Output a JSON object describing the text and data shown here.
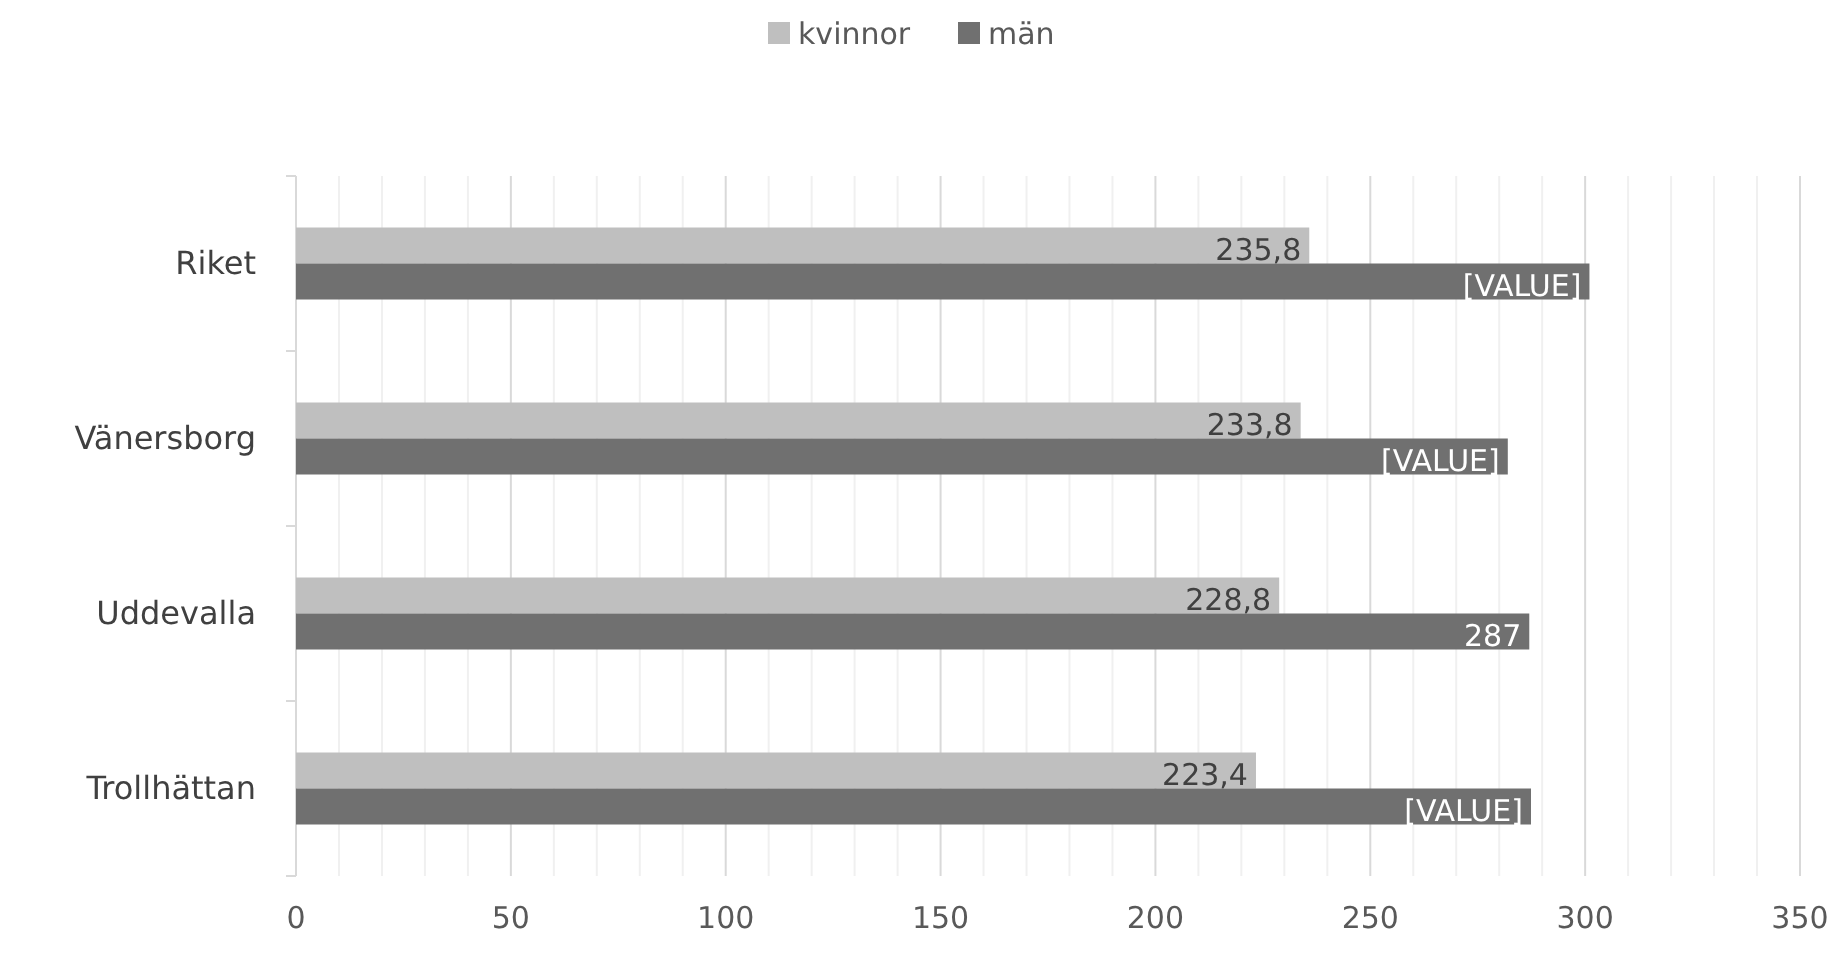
{
  "chart_data": {
    "type": "bar",
    "orientation": "horizontal",
    "categories": [
      "Riket",
      "Vänersborg",
      "Uddevalla",
      "Trollhättan"
    ],
    "series": [
      {
        "name": "kvinnor",
        "color": "#bfbfbf",
        "values": [
          235.8,
          233.8,
          228.8,
          223.4
        ],
        "value_labels": [
          "235,8",
          "233,8",
          "228,8",
          "223,4"
        ]
      },
      {
        "name": "män",
        "color": "#707070",
        "values": [
          301,
          282,
          287,
          287.4
        ],
        "value_labels": [
          "[VALUE]",
          "[VALUE]",
          "287",
          "[VALUE]"
        ]
      }
    ],
    "xlim": [
      0,
      350
    ],
    "xticks": [
      0,
      {
        "value": 10,
        "label": null
      },
      {
        "value": 20,
        "label": null
      },
      {
        "value": 30,
        "label": null
      },
      {
        "value": 40,
        "label": null
      },
      50,
      {
        "value": 60,
        "label": null
      },
      {
        "value": 70,
        "label": null
      },
      {
        "value": 80,
        "label": null
      },
      {
        "value": 90,
        "label": null
      },
      100,
      {
        "value": 110,
        "label": null
      },
      {
        "value": 120,
        "label": null
      },
      {
        "value": 130,
        "label": null
      },
      {
        "value": 140,
        "label": null
      },
      150,
      {
        "value": 160,
        "label": null
      },
      {
        "value": 170,
        "label": null
      },
      {
        "value": 180,
        "label": null
      },
      {
        "value": 190,
        "label": null
      },
      200,
      {
        "value": 210,
        "label": null
      },
      {
        "value": 220,
        "label": null
      },
      {
        "value": 230,
        "label": null
      },
      {
        "value": 240,
        "label": null
      },
      250,
      {
        "value": 260,
        "label": null
      },
      {
        "value": 270,
        "label": null
      },
      {
        "value": 280,
        "label": null
      },
      {
        "value": 290,
        "label": null
      },
      300,
      {
        "value": 310,
        "label": null
      },
      {
        "value": 320,
        "label": null
      },
      {
        "value": 330,
        "label": null
      },
      {
        "value": 340,
        "label": null
      },
      350
    ],
    "grid": "x",
    "legend": "top"
  }
}
